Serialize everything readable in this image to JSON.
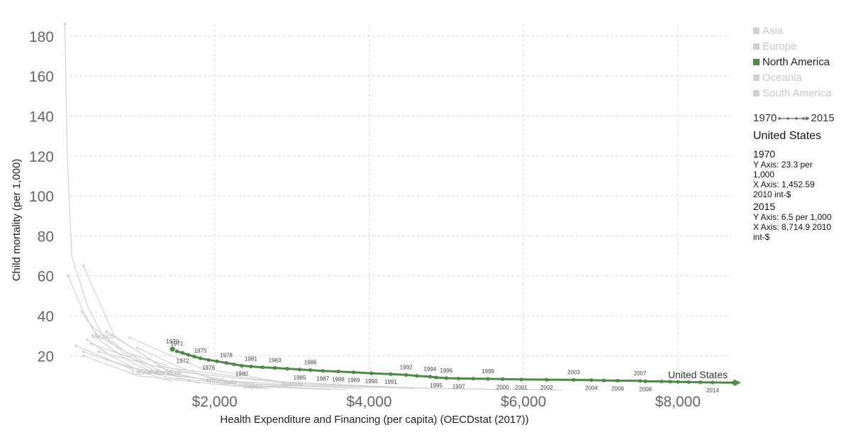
{
  "chart_data": {
    "type": "scatter",
    "title": "",
    "xlabel": "Health Expenditure and Financing (per capita) (OECDstat (2017))",
    "ylabel": "Child mortality (per 1,000)",
    "xlim": [
      0,
      8800
    ],
    "ylim": [
      2,
      186
    ],
    "x_ticks": [
      2000,
      4000,
      6000,
      8000
    ],
    "x_tick_labels": [
      "$2,000",
      "$4,000",
      "$6,000",
      "$8,000"
    ],
    "y_ticks": [
      20,
      40,
      60,
      80,
      100,
      120,
      140,
      160,
      180
    ],
    "y_tick_labels": [
      "20",
      "40",
      "60",
      "80",
      "100",
      "120",
      "140",
      "160",
      "180"
    ],
    "grid": true,
    "legend": {
      "placement": "right",
      "entries": [
        {
          "label": "Asia",
          "active": false
        },
        {
          "label": "Europe",
          "active": false
        },
        {
          "label": "North America",
          "active": true
        },
        {
          "label": "Oceania",
          "active": false
        },
        {
          "label": "South America",
          "active": false
        }
      ]
    },
    "time_range": {
      "start": "1970",
      "end": "2015"
    },
    "highlight_color": "#4c8a45",
    "background_color": "#d3d3d3",
    "series": [
      {
        "name": "United States",
        "highlighted": true,
        "points": [
          {
            "year": "1970",
            "x": 1453,
            "y": 23.3
          },
          {
            "year": "1971",
            "x": 1510,
            "y": 22.2
          },
          {
            "year": "1972",
            "x": 1585,
            "y": 21.4
          },
          {
            "year": "1973",
            "x": 1660,
            "y": 20.4
          },
          {
            "year": "1974",
            "x": 1735,
            "y": 19.6
          },
          {
            "year": "1975",
            "x": 1815,
            "y": 18.7
          },
          {
            "year": "1976",
            "x": 1920,
            "y": 17.9
          },
          {
            "year": "1977",
            "x": 2030,
            "y": 17.2
          },
          {
            "year": "1978",
            "x": 2150,
            "y": 16.4
          },
          {
            "year": "1979",
            "x": 2250,
            "y": 15.7
          },
          {
            "year": "1980",
            "x": 2350,
            "y": 15.0
          },
          {
            "year": "1981",
            "x": 2470,
            "y": 14.6
          },
          {
            "year": "1982",
            "x": 2620,
            "y": 14.2
          },
          {
            "year": "1983",
            "x": 2780,
            "y": 13.9
          },
          {
            "year": "1984",
            "x": 2940,
            "y": 13.5
          },
          {
            "year": "1985",
            "x": 3100,
            "y": 13.1
          },
          {
            "year": "1986",
            "x": 3240,
            "y": 12.8
          },
          {
            "year": "1987",
            "x": 3400,
            "y": 12.4
          },
          {
            "year": "1988",
            "x": 3600,
            "y": 12.1
          },
          {
            "year": "1989",
            "x": 3800,
            "y": 11.7
          },
          {
            "year": "1990",
            "x": 4030,
            "y": 11.2
          },
          {
            "year": "1991",
            "x": 4280,
            "y": 10.8
          },
          {
            "year": "1992",
            "x": 4480,
            "y": 10.4
          },
          {
            "year": "1993",
            "x": 4620,
            "y": 9.9
          },
          {
            "year": "1994",
            "x": 4790,
            "y": 9.5
          },
          {
            "year": "1995",
            "x": 4870,
            "y": 9.1
          },
          {
            "year": "1996",
            "x": 5000,
            "y": 8.8
          },
          {
            "year": "1997",
            "x": 5160,
            "y": 8.6
          },
          {
            "year": "1998",
            "x": 5350,
            "y": 8.5
          },
          {
            "year": "1999",
            "x": 5540,
            "y": 8.4
          },
          {
            "year": "2000",
            "x": 5730,
            "y": 8.3
          },
          {
            "year": "2001",
            "x": 5970,
            "y": 8.1
          },
          {
            "year": "2002",
            "x": 6300,
            "y": 8.0
          },
          {
            "year": "2003",
            "x": 6650,
            "y": 7.9
          },
          {
            "year": "2004",
            "x": 6880,
            "y": 7.8
          },
          {
            "year": "2005",
            "x": 7040,
            "y": 7.6
          },
          {
            "year": "2006",
            "x": 7220,
            "y": 7.5
          },
          {
            "year": "2007",
            "x": 7510,
            "y": 7.4
          },
          {
            "year": "2008",
            "x": 7580,
            "y": 7.2
          },
          {
            "year": "2009",
            "x": 7790,
            "y": 7.1
          },
          {
            "year": "2010",
            "x": 7900,
            "y": 7.0
          },
          {
            "year": "2011",
            "x": 8000,
            "y": 6.9
          },
          {
            "year": "2012",
            "x": 8140,
            "y": 6.8
          },
          {
            "year": "2013",
            "x": 8290,
            "y": 6.7
          },
          {
            "year": "2014",
            "x": 8450,
            "y": 6.6
          },
          {
            "year": "2015",
            "x": 8715,
            "y": 6.5
          }
        ],
        "year_labels": [
          {
            "year": "1970",
            "pos": "above"
          },
          {
            "year": "1971",
            "pos": "above"
          },
          {
            "year": "1972",
            "pos": "below"
          },
          {
            "year": "1975",
            "pos": "above"
          },
          {
            "year": "1976",
            "pos": "below"
          },
          {
            "year": "1978",
            "pos": "above"
          },
          {
            "year": "1980",
            "pos": "below"
          },
          {
            "year": "1981",
            "pos": "above"
          },
          {
            "year": "1983",
            "pos": "above"
          },
          {
            "year": "1985",
            "pos": "below"
          },
          {
            "year": "1986",
            "pos": "above"
          },
          {
            "year": "1987",
            "pos": "below"
          },
          {
            "year": "1988",
            "pos": "below"
          },
          {
            "year": "1989",
            "pos": "below"
          },
          {
            "year": "1990",
            "pos": "below"
          },
          {
            "year": "1991",
            "pos": "below"
          },
          {
            "year": "1992",
            "pos": "above"
          },
          {
            "year": "1994",
            "pos": "above"
          },
          {
            "year": "1995",
            "pos": "below"
          },
          {
            "year": "1996",
            "pos": "above"
          },
          {
            "year": "1997",
            "pos": "below"
          },
          {
            "year": "1999",
            "pos": "above"
          },
          {
            "year": "2000",
            "pos": "below"
          },
          {
            "year": "2001",
            "pos": "below"
          },
          {
            "year": "2002",
            "pos": "below"
          },
          {
            "year": "2003",
            "pos": "above"
          },
          {
            "year": "2004",
            "pos": "below"
          },
          {
            "year": "2006",
            "pos": "below"
          },
          {
            "year": "2007",
            "pos": "above"
          },
          {
            "year": "2008",
            "pos": "below"
          },
          {
            "year": "2014",
            "pos": "below"
          }
        ]
      },
      {
        "name": "Mexico",
        "label_shown": true,
        "points": [
          {
            "x": 60,
            "y": 186
          },
          {
            "x": 90,
            "y": 120
          },
          {
            "x": 150,
            "y": 70
          },
          {
            "x": 350,
            "y": 45
          },
          {
            "x": 550,
            "y": 30
          },
          {
            "x": 800,
            "y": 22
          },
          {
            "x": 1050,
            "y": 16
          },
          {
            "x": 1200,
            "y": 13
          }
        ]
      },
      {
        "name": "Latvia",
        "label_shown": true,
        "points": [
          {
            "x": 350,
            "y": 28
          },
          {
            "x": 650,
            "y": 20
          },
          {
            "x": 1050,
            "y": 12
          },
          {
            "x": 1450,
            "y": 7
          }
        ]
      },
      {
        "name": "Poland",
        "label_shown": true,
        "points": [
          {
            "x": 400,
            "y": 35
          },
          {
            "x": 850,
            "y": 22
          },
          {
            "x": 1300,
            "y": 12
          },
          {
            "x": 1800,
            "y": 6
          }
        ]
      },
      {
        "name": "Israel",
        "label_shown": true,
        "points": [
          {
            "x": 1000,
            "y": 24
          },
          {
            "x": 1500,
            "y": 15
          },
          {
            "x": 2000,
            "y": 8
          },
          {
            "x": 2500,
            "y": 4
          }
        ]
      },
      {
        "name": "Portugal",
        "label_shown": true,
        "points": [
          {
            "x": 300,
            "y": 65
          },
          {
            "x": 700,
            "y": 30
          },
          {
            "x": 1400,
            "y": 12
          },
          {
            "x": 2200,
            "y": 5
          },
          {
            "x": 2700,
            "y": 3.5
          }
        ]
      },
      {
        "name": "Italy",
        "label_shown": true,
        "points": [
          {
            "x": 600,
            "y": 32
          },
          {
            "x": 1300,
            "y": 15
          },
          {
            "x": 2200,
            "y": 7
          },
          {
            "x": 3200,
            "y": 3.5
          }
        ]
      },
      {
        "name": "Japan",
        "label_shown": true,
        "points": [
          {
            "x": 600,
            "y": 18
          },
          {
            "x": 1400,
            "y": 9
          },
          {
            "x": 2500,
            "y": 5
          },
          {
            "x": 3700,
            "y": 3
          }
        ]
      },
      {
        "name": "Austria",
        "label_shown": true,
        "points": [
          {
            "x": 900,
            "y": 29
          },
          {
            "x": 1800,
            "y": 14
          },
          {
            "x": 3000,
            "y": 6
          },
          {
            "x": 4600,
            "y": 3.5
          }
        ]
      },
      {
        "name": "",
        "label_shown": false,
        "points": [
          {
            "x": 280,
            "y": 42
          },
          {
            "x": 480,
            "y": 30
          },
          {
            "x": 900,
            "y": 21
          },
          {
            "x": 1400,
            "y": 15
          }
        ]
      },
      {
        "name": "",
        "label_shown": false,
        "points": [
          {
            "x": 100,
            "y": 60
          },
          {
            "x": 300,
            "y": 42
          },
          {
            "x": 500,
            "y": 28
          },
          {
            "x": 900,
            "y": 17
          },
          {
            "x": 1300,
            "y": 10
          }
        ]
      },
      {
        "name": "",
        "label_shown": false,
        "points": [
          {
            "x": 300,
            "y": 22
          },
          {
            "x": 900,
            "y": 14
          },
          {
            "x": 1900,
            "y": 8
          },
          {
            "x": 3200,
            "y": 5
          },
          {
            "x": 4200,
            "y": 4
          }
        ]
      },
      {
        "name": "",
        "label_shown": false,
        "points": [
          {
            "x": 400,
            "y": 26
          },
          {
            "x": 1200,
            "y": 15
          },
          {
            "x": 2800,
            "y": 7
          },
          {
            "x": 4500,
            "y": 4
          },
          {
            "x": 5800,
            "y": 3
          }
        ]
      },
      {
        "name": "",
        "label_shown": false,
        "points": [
          {
            "x": 500,
            "y": 22
          },
          {
            "x": 1500,
            "y": 12
          },
          {
            "x": 3000,
            "y": 6
          },
          {
            "x": 5000,
            "y": 3.5
          },
          {
            "x": 6500,
            "y": 2.8
          }
        ]
      },
      {
        "name": "",
        "label_shown": false,
        "points": [
          {
            "x": 200,
            "y": 25
          },
          {
            "x": 1000,
            "y": 12
          },
          {
            "x": 2400,
            "y": 6
          },
          {
            "x": 3900,
            "y": 3.5
          }
        ]
      },
      {
        "name": "",
        "label_shown": false,
        "points": [
          {
            "x": 300,
            "y": 20
          },
          {
            "x": 1000,
            "y": 10
          },
          {
            "x": 2200,
            "y": 5
          },
          {
            "x": 3500,
            "y": 3
          }
        ]
      }
    ],
    "series_end_label": "United States"
  },
  "legend_panel": {
    "time_start": "1970",
    "time_end": "2015",
    "entity": "United States",
    "start": {
      "year": "1970",
      "y_line1": "Y Axis: 23.3 per",
      "y_line2": "1,000",
      "x_line1": "X Axis: 1,452.59",
      "x_line2": "2010 int-$"
    },
    "end": {
      "year": "2015",
      "y_line1": "Y Axis: 6.5 per 1,000",
      "x_line1": "X Axis: 8,714.9 2010",
      "x_line2": "int-$"
    }
  }
}
